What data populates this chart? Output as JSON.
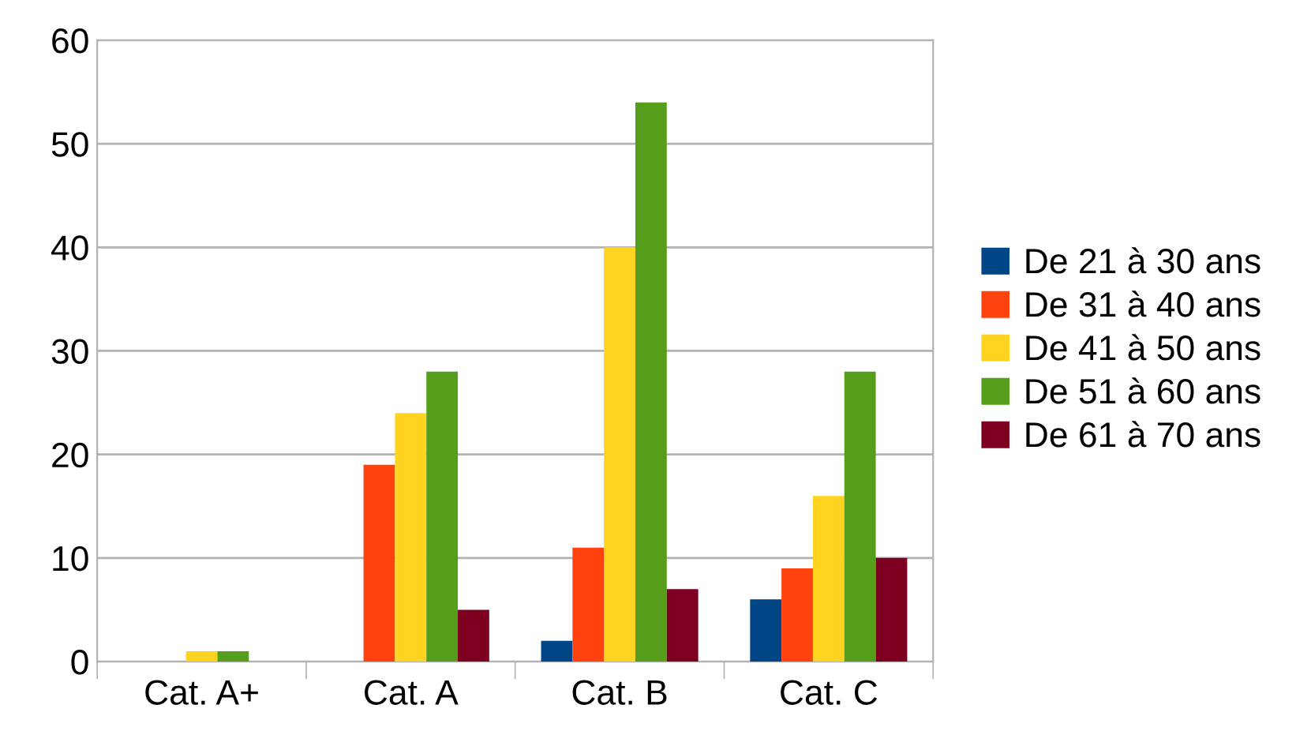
{
  "chart_data": {
    "type": "bar",
    "categories": [
      "Cat. A+",
      "Cat. A",
      "Cat. B",
      "Cat. C"
    ],
    "series": [
      {
        "name": "De 21 à 30 ans",
        "color": "#004586",
        "values": [
          0,
          0,
          2,
          6
        ]
      },
      {
        "name": "De 31 à 40 ans",
        "color": "#ff420e",
        "values": [
          0,
          19,
          11,
          9
        ]
      },
      {
        "name": "De 41 à 50 ans",
        "color": "#ffd320",
        "values": [
          1,
          24,
          40,
          16
        ]
      },
      {
        "name": "De 51 à 60 ans",
        "color": "#579d1c",
        "values": [
          1,
          28,
          54,
          28
        ]
      },
      {
        "name": "De 61 à 70 ans",
        "color": "#7e0021",
        "values": [
          0,
          5,
          7,
          10
        ]
      }
    ],
    "ylim": [
      0,
      60
    ],
    "yticks": [
      0,
      10,
      20,
      30,
      40,
      50,
      60
    ],
    "grid": "y",
    "legend": "right"
  }
}
